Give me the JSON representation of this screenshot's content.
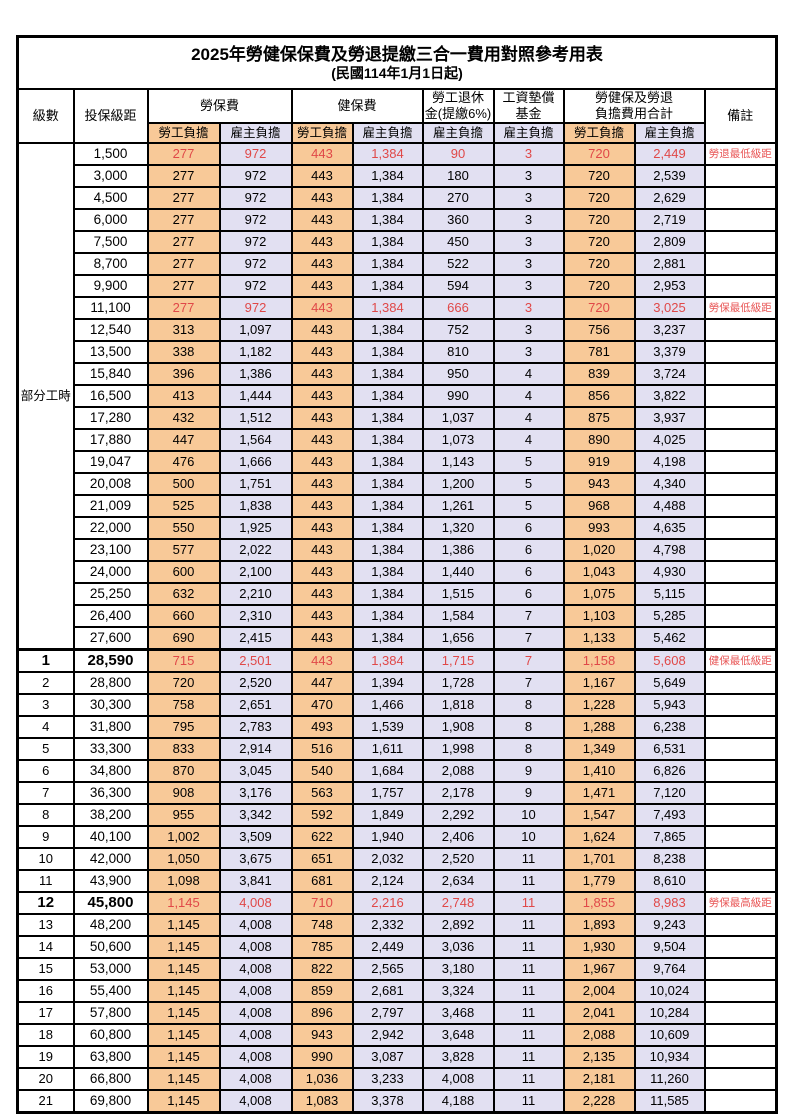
{
  "title": "2025年勞健保保費及勞退提繳三合一費用對照參考用表",
  "subtitle": "(民國114年1月1日起)",
  "header": {
    "level": "級數",
    "bracket": "投保級距",
    "labor_ins": "勞保費",
    "health_ins": "健保費",
    "pension_line1": "勞工退休",
    "pension_line2": "金(提繳6%)",
    "wage_fund_line1": "工資墊償",
    "wage_fund_line2": "基金",
    "total_line1": "勞健保及勞退",
    "total_line2": "負擔費用合計",
    "note": "備註",
    "employee": "勞工負擔",
    "employer": "雇主負擔"
  },
  "part_time_label": "部分工時",
  "part_time_rowspan": 23,
  "colors": {
    "employee_bg": "#f8c998",
    "employer_bg": "#e2e0f2",
    "highlight_red": "#e04848",
    "note_red": "#e85555",
    "border": "#000000"
  },
  "rows": [
    {
      "level": "",
      "bracket": "1,500",
      "values": [
        "277",
        "972",
        "443",
        "1,384",
        "90",
        "3",
        "720",
        "2,449"
      ],
      "note": "勞退最低級距",
      "red": true,
      "hl": false,
      "brk": false
    },
    {
      "level": "",
      "bracket": "3,000",
      "values": [
        "277",
        "972",
        "443",
        "1,384",
        "180",
        "3",
        "720",
        "2,539"
      ],
      "note": "",
      "red": false,
      "hl": false,
      "brk": false
    },
    {
      "level": "",
      "bracket": "4,500",
      "values": [
        "277",
        "972",
        "443",
        "1,384",
        "270",
        "3",
        "720",
        "2,629"
      ],
      "note": "",
      "red": false,
      "hl": false,
      "brk": false
    },
    {
      "level": "",
      "bracket": "6,000",
      "values": [
        "277",
        "972",
        "443",
        "1,384",
        "360",
        "3",
        "720",
        "2,719"
      ],
      "note": "",
      "red": false,
      "hl": false,
      "brk": false
    },
    {
      "level": "",
      "bracket": "7,500",
      "values": [
        "277",
        "972",
        "443",
        "1,384",
        "450",
        "3",
        "720",
        "2,809"
      ],
      "note": "",
      "red": false,
      "hl": false,
      "brk": false
    },
    {
      "level": "",
      "bracket": "8,700",
      "values": [
        "277",
        "972",
        "443",
        "1,384",
        "522",
        "3",
        "720",
        "2,881"
      ],
      "note": "",
      "red": false,
      "hl": false,
      "brk": false
    },
    {
      "level": "",
      "bracket": "9,900",
      "values": [
        "277",
        "972",
        "443",
        "1,384",
        "594",
        "3",
        "720",
        "2,953"
      ],
      "note": "",
      "red": false,
      "hl": false,
      "brk": false
    },
    {
      "level": "",
      "bracket": "11,100",
      "values": [
        "277",
        "972",
        "443",
        "1,384",
        "666",
        "3",
        "720",
        "3,025"
      ],
      "note": "勞保最低級距",
      "red": true,
      "hl": false,
      "brk": false
    },
    {
      "level": "",
      "bracket": "12,540",
      "values": [
        "313",
        "1,097",
        "443",
        "1,384",
        "752",
        "3",
        "756",
        "3,237"
      ],
      "note": "",
      "red": false,
      "hl": false,
      "brk": false
    },
    {
      "level": "",
      "bracket": "13,500",
      "values": [
        "338",
        "1,182",
        "443",
        "1,384",
        "810",
        "3",
        "781",
        "3,379"
      ],
      "note": "",
      "red": false,
      "hl": false,
      "brk": false
    },
    {
      "level": "",
      "bracket": "15,840",
      "values": [
        "396",
        "1,386",
        "443",
        "1,384",
        "950",
        "4",
        "839",
        "3,724"
      ],
      "note": "",
      "red": false,
      "hl": false,
      "brk": false
    },
    {
      "level": "",
      "bracket": "16,500",
      "values": [
        "413",
        "1,444",
        "443",
        "1,384",
        "990",
        "4",
        "856",
        "3,822"
      ],
      "note": "",
      "red": false,
      "hl": false,
      "brk": false
    },
    {
      "level": "",
      "bracket": "17,280",
      "values": [
        "432",
        "1,512",
        "443",
        "1,384",
        "1,037",
        "4",
        "875",
        "3,937"
      ],
      "note": "",
      "red": false,
      "hl": false,
      "brk": false
    },
    {
      "level": "",
      "bracket": "17,880",
      "values": [
        "447",
        "1,564",
        "443",
        "1,384",
        "1,073",
        "4",
        "890",
        "4,025"
      ],
      "note": "",
      "red": false,
      "hl": false,
      "brk": false
    },
    {
      "level": "",
      "bracket": "19,047",
      "values": [
        "476",
        "1,666",
        "443",
        "1,384",
        "1,143",
        "5",
        "919",
        "4,198"
      ],
      "note": "",
      "red": false,
      "hl": false,
      "brk": false
    },
    {
      "level": "",
      "bracket": "20,008",
      "values": [
        "500",
        "1,751",
        "443",
        "1,384",
        "1,200",
        "5",
        "943",
        "4,340"
      ],
      "note": "",
      "red": false,
      "hl": false,
      "brk": false
    },
    {
      "level": "",
      "bracket": "21,009",
      "values": [
        "525",
        "1,838",
        "443",
        "1,384",
        "1,261",
        "5",
        "968",
        "4,488"
      ],
      "note": "",
      "red": false,
      "hl": false,
      "brk": false
    },
    {
      "level": "",
      "bracket": "22,000",
      "values": [
        "550",
        "1,925",
        "443",
        "1,384",
        "1,320",
        "6",
        "993",
        "4,635"
      ],
      "note": "",
      "red": false,
      "hl": false,
      "brk": false
    },
    {
      "level": "",
      "bracket": "23,100",
      "values": [
        "577",
        "2,022",
        "443",
        "1,384",
        "1,386",
        "6",
        "1,020",
        "4,798"
      ],
      "note": "",
      "red": false,
      "hl": false,
      "brk": false
    },
    {
      "level": "",
      "bracket": "24,000",
      "values": [
        "600",
        "2,100",
        "443",
        "1,384",
        "1,440",
        "6",
        "1,043",
        "4,930"
      ],
      "note": "",
      "red": false,
      "hl": false,
      "brk": false
    },
    {
      "level": "",
      "bracket": "25,250",
      "values": [
        "632",
        "2,210",
        "443",
        "1,384",
        "1,515",
        "6",
        "1,075",
        "5,115"
      ],
      "note": "",
      "red": false,
      "hl": false,
      "brk": false
    },
    {
      "level": "",
      "bracket": "26,400",
      "values": [
        "660",
        "2,310",
        "443",
        "1,384",
        "1,584",
        "7",
        "1,103",
        "5,285"
      ],
      "note": "",
      "red": false,
      "hl": false,
      "brk": false
    },
    {
      "level": "",
      "bracket": "27,600",
      "values": [
        "690",
        "2,415",
        "443",
        "1,384",
        "1,656",
        "7",
        "1,133",
        "5,462"
      ],
      "note": "",
      "red": false,
      "hl": false,
      "brk": false
    },
    {
      "level": "1",
      "bracket": "28,590",
      "values": [
        "715",
        "2,501",
        "443",
        "1,384",
        "1,715",
        "7",
        "1,158",
        "5,608"
      ],
      "note": "健保最低級距",
      "red": true,
      "hl": true,
      "brk": true
    },
    {
      "level": "2",
      "bracket": "28,800",
      "values": [
        "720",
        "2,520",
        "447",
        "1,394",
        "1,728",
        "7",
        "1,167",
        "5,649"
      ],
      "note": "",
      "red": false,
      "hl": false,
      "brk": false
    },
    {
      "level": "3",
      "bracket": "30,300",
      "values": [
        "758",
        "2,651",
        "470",
        "1,466",
        "1,818",
        "8",
        "1,228",
        "5,943"
      ],
      "note": "",
      "red": false,
      "hl": false,
      "brk": false
    },
    {
      "level": "4",
      "bracket": "31,800",
      "values": [
        "795",
        "2,783",
        "493",
        "1,539",
        "1,908",
        "8",
        "1,288",
        "6,238"
      ],
      "note": "",
      "red": false,
      "hl": false,
      "brk": false
    },
    {
      "level": "5",
      "bracket": "33,300",
      "values": [
        "833",
        "2,914",
        "516",
        "1,611",
        "1,998",
        "8",
        "1,349",
        "6,531"
      ],
      "note": "",
      "red": false,
      "hl": false,
      "brk": false
    },
    {
      "level": "6",
      "bracket": "34,800",
      "values": [
        "870",
        "3,045",
        "540",
        "1,684",
        "2,088",
        "9",
        "1,410",
        "6,826"
      ],
      "note": "",
      "red": false,
      "hl": false,
      "brk": false
    },
    {
      "level": "7",
      "bracket": "36,300",
      "values": [
        "908",
        "3,176",
        "563",
        "1,757",
        "2,178",
        "9",
        "1,471",
        "7,120"
      ],
      "note": "",
      "red": false,
      "hl": false,
      "brk": false
    },
    {
      "level": "8",
      "bracket": "38,200",
      "values": [
        "955",
        "3,342",
        "592",
        "1,849",
        "2,292",
        "10",
        "1,547",
        "7,493"
      ],
      "note": "",
      "red": false,
      "hl": false,
      "brk": false
    },
    {
      "level": "9",
      "bracket": "40,100",
      "values": [
        "1,002",
        "3,509",
        "622",
        "1,940",
        "2,406",
        "10",
        "1,624",
        "7,865"
      ],
      "note": "",
      "red": false,
      "hl": false,
      "brk": false
    },
    {
      "level": "10",
      "bracket": "42,000",
      "values": [
        "1,050",
        "3,675",
        "651",
        "2,032",
        "2,520",
        "11",
        "1,701",
        "8,238"
      ],
      "note": "",
      "red": false,
      "hl": false,
      "brk": false
    },
    {
      "level": "11",
      "bracket": "43,900",
      "values": [
        "1,098",
        "3,841",
        "681",
        "2,124",
        "2,634",
        "11",
        "1,779",
        "8,610"
      ],
      "note": "",
      "red": false,
      "hl": false,
      "brk": false
    },
    {
      "level": "12",
      "bracket": "45,800",
      "values": [
        "1,145",
        "4,008",
        "710",
        "2,216",
        "2,748",
        "11",
        "1,855",
        "8,983"
      ],
      "note": "勞保最高級距",
      "red": true,
      "hl": true,
      "brk": false
    },
    {
      "level": "13",
      "bracket": "48,200",
      "values": [
        "1,145",
        "4,008",
        "748",
        "2,332",
        "2,892",
        "11",
        "1,893",
        "9,243"
      ],
      "note": "",
      "red": false,
      "hl": false,
      "brk": false
    },
    {
      "level": "14",
      "bracket": "50,600",
      "values": [
        "1,145",
        "4,008",
        "785",
        "2,449",
        "3,036",
        "11",
        "1,930",
        "9,504"
      ],
      "note": "",
      "red": false,
      "hl": false,
      "brk": false
    },
    {
      "level": "15",
      "bracket": "53,000",
      "values": [
        "1,145",
        "4,008",
        "822",
        "2,565",
        "3,180",
        "11",
        "1,967",
        "9,764"
      ],
      "note": "",
      "red": false,
      "hl": false,
      "brk": false
    },
    {
      "level": "16",
      "bracket": "55,400",
      "values": [
        "1,145",
        "4,008",
        "859",
        "2,681",
        "3,324",
        "11",
        "2,004",
        "10,024"
      ],
      "note": "",
      "red": false,
      "hl": false,
      "brk": false
    },
    {
      "level": "17",
      "bracket": "57,800",
      "values": [
        "1,145",
        "4,008",
        "896",
        "2,797",
        "3,468",
        "11",
        "2,041",
        "10,284"
      ],
      "note": "",
      "red": false,
      "hl": false,
      "brk": false
    },
    {
      "level": "18",
      "bracket": "60,800",
      "values": [
        "1,145",
        "4,008",
        "943",
        "2,942",
        "3,648",
        "11",
        "2,088",
        "10,609"
      ],
      "note": "",
      "red": false,
      "hl": false,
      "brk": false
    },
    {
      "level": "19",
      "bracket": "63,800",
      "values": [
        "1,145",
        "4,008",
        "990",
        "3,087",
        "3,828",
        "11",
        "2,135",
        "10,934"
      ],
      "note": "",
      "red": false,
      "hl": false,
      "brk": false
    },
    {
      "level": "20",
      "bracket": "66,800",
      "values": [
        "1,145",
        "4,008",
        "1,036",
        "3,233",
        "4,008",
        "11",
        "2,181",
        "11,260"
      ],
      "note": "",
      "red": false,
      "hl": false,
      "brk": false
    },
    {
      "level": "21",
      "bracket": "69,800",
      "values": [
        "1,145",
        "4,008",
        "1,083",
        "3,378",
        "4,188",
        "11",
        "2,228",
        "11,585"
      ],
      "note": "",
      "red": false,
      "hl": false,
      "brk": false
    }
  ]
}
